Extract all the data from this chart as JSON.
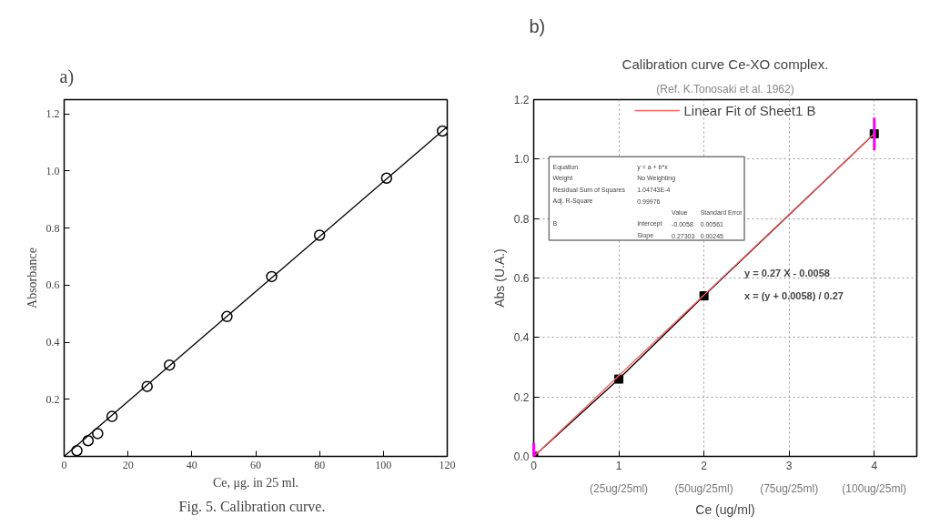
{
  "chart_data": [
    {
      "type": "scatter",
      "xlabel": "Ce, μg. in 25 ml.",
      "ylabel": "Absorbance",
      "annotations": [
        "a)",
        "Fig. 5.   Calibration curve."
      ],
      "xlim": [
        0,
        120
      ],
      "ylim": [
        0,
        1.25
      ],
      "xticks": [
        0,
        20,
        40,
        60,
        80,
        100,
        120
      ],
      "yticks": [
        {
          "value": 0.2,
          "label": "0.2"
        },
        {
          "value": 0.4,
          "label": "0.4"
        },
        {
          "value": 0.6,
          "label": "0.6"
        },
        {
          "value": 0.8,
          "label": "0.8"
        },
        {
          "value": 1.0,
          "label": "1.0"
        },
        {
          "value": 1.2,
          "label": "1.2"
        }
      ],
      "grid": false,
      "legend": false,
      "series": [
        {
          "marker": "circle",
          "color": "#000000",
          "x": [
            4,
            7.5,
            10.5,
            15,
            26,
            33,
            51,
            65,
            80,
            101,
            118.5
          ],
          "values": [
            0.02,
            0.055,
            0.08,
            0.14,
            0.245,
            0.32,
            0.49,
            0.63,
            0.775,
            0.975,
            1.14
          ]
        },
        {
          "type": "line",
          "color": "#000000",
          "x": [
            0,
            120
          ],
          "values": [
            0,
            1.155
          ]
        }
      ]
    },
    {
      "type": "line",
      "title": "Calibration curve Ce-XO complex.",
      "subtitle": "(Ref. K.Tonosaki et al. 1962)",
      "xlabel": "Ce (ug/ml)",
      "ylabel": "Abs (U.A.)",
      "annotations": [
        "b)",
        "y = 0.27 X - 0.0058",
        "x = (y + 0.0058) / 0.27",
        "Equation\ty = a + b*x",
        "Weight\tNo Weighting",
        "Residual Sum of Squares\t1.04743E-4",
        "Adj. R-Square\t0.99976",
        "\t\tValue\tStandard Error",
        "B\tIntercept\t-0.0058\t0.00561",
        "\tSlope\t0.27303\t0.00245",
        "(25ug/25ml)",
        "(50ug/25ml)",
        "(75ug/25ml)",
        "(100ug/25ml)"
      ],
      "xlim": [
        0,
        4.5
      ],
      "ylim": [
        0,
        1.2
      ],
      "xticks": [
        0,
        1,
        2,
        3,
        4
      ],
      "yticks": [
        {
          "value": 0,
          "label": "0.0"
        },
        {
          "value": 0.2,
          "label": "0.2"
        },
        {
          "value": 0.4,
          "label": "0.4"
        },
        {
          "value": 0.6,
          "label": "0.6"
        },
        {
          "value": 0.8,
          "label": "0.8"
        },
        {
          "value": 1.0,
          "label": "1.0"
        },
        {
          "value": 1.2,
          "label": "1.2"
        }
      ],
      "grid": true,
      "legend": "top",
      "series": [
        {
          "marker": "square",
          "color": "#000000",
          "x": [
            0,
            1,
            2,
            4
          ],
          "values": [
            0.0,
            0.26,
            0.54,
            1.085
          ],
          "errors": [
            [
              0,
              0.045
            ],
            null,
            null,
            [
              1.03,
              1.14
            ]
          ]
        },
        {
          "name": "Linear Fit of Sheet1 B",
          "color": "#ff6666",
          "x": [
            0,
            4
          ],
          "values": [
            0,
            1.086
          ]
        }
      ]
    }
  ]
}
